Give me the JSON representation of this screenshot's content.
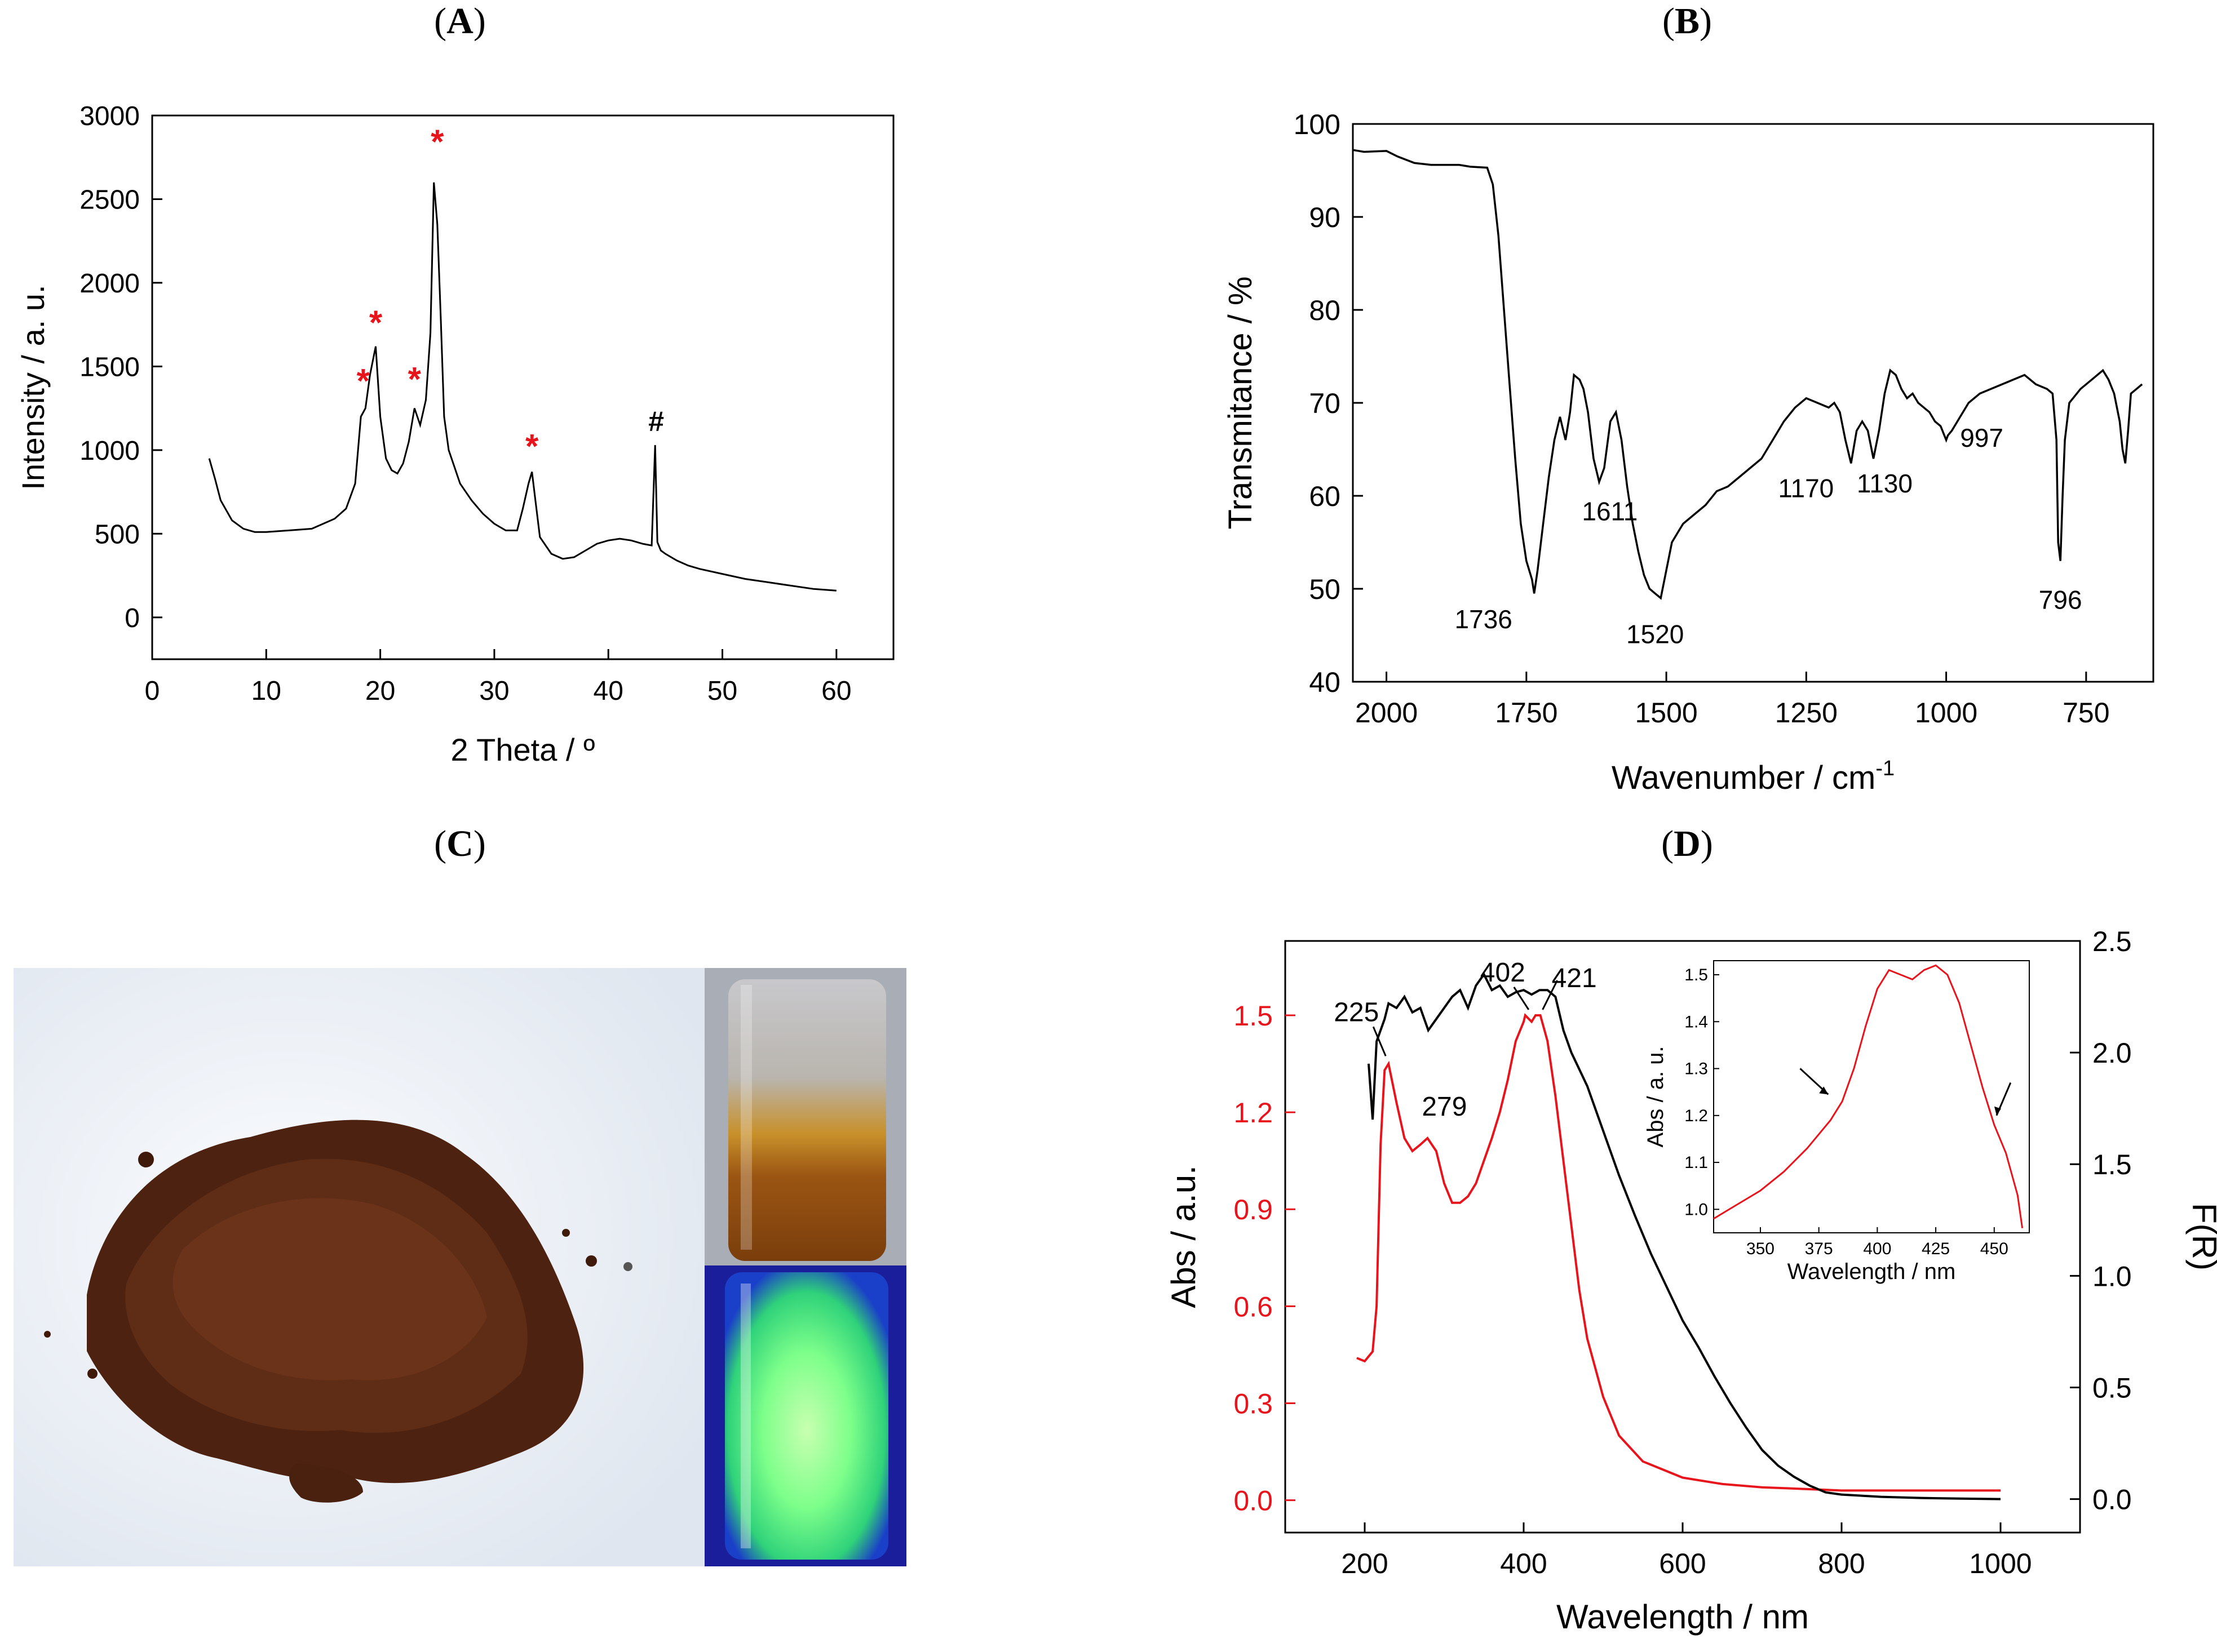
{
  "panels": {
    "A": {
      "label": "A"
    },
    "B": {
      "label": "B"
    },
    "C": {
      "label": "C"
    },
    "D": {
      "label": "D"
    }
  },
  "chart_data": [
    {
      "panel": "A",
      "type": "line",
      "xlabel": "2 Theta / º",
      "ylabel": "Intensity / a. u.",
      "xlim": [
        0,
        65
      ],
      "ylim": [
        -250,
        3000
      ],
      "xticks": [
        0,
        10,
        20,
        30,
        40,
        50,
        60
      ],
      "yticks": [
        0,
        500,
        1000,
        1500,
        2000,
        2500,
        3000
      ],
      "series": [
        {
          "x": [
            5,
            5.5,
            6,
            7,
            8,
            9,
            10,
            12,
            14,
            15,
            16,
            17,
            17.8,
            18.3,
            18.7,
            19.1,
            19.6,
            20.0,
            20.5,
            21,
            21.5,
            22,
            22.5,
            23,
            23.5,
            24,
            24.4,
            24.7,
            25.0,
            25.3,
            25.6,
            26,
            26.5,
            27,
            28,
            29,
            30,
            31,
            32,
            32.5,
            33,
            33.3,
            33.6,
            34,
            35,
            36,
            37,
            38,
            39,
            40,
            41,
            42,
            43,
            43.8,
            44.1,
            44.3,
            44.6,
            45,
            46,
            47,
            48,
            50,
            52,
            54,
            56,
            58,
            60
          ],
          "y": [
            950,
            830,
            700,
            580,
            530,
            510,
            510,
            520,
            530,
            560,
            590,
            650,
            800,
            1200,
            1250,
            1450,
            1620,
            1200,
            950,
            880,
            860,
            920,
            1050,
            1250,
            1150,
            1300,
            1700,
            2600,
            2350,
            1800,
            1200,
            1000,
            900,
            800,
            700,
            620,
            560,
            520,
            520,
            650,
            800,
            870,
            700,
            480,
            380,
            350,
            360,
            400,
            440,
            460,
            470,
            460,
            440,
            430,
            1030,
            450,
            400,
            380,
            340,
            310,
            290,
            260,
            230,
            210,
            190,
            170,
            160
          ]
        }
      ],
      "annotations": [
        {
          "text": "*",
          "x": 18.5,
          "y": 1270,
          "color": "#e8141c"
        },
        {
          "text": "*",
          "x": 19.6,
          "y": 1620,
          "color": "#e8141c"
        },
        {
          "text": "*",
          "x": 23.0,
          "y": 1280,
          "color": "#e8141c"
        },
        {
          "text": "*",
          "x": 25.0,
          "y": 2700,
          "color": "#e8141c"
        },
        {
          "text": "*",
          "x": 33.3,
          "y": 880,
          "color": "#e8141c"
        },
        {
          "text": "#",
          "x": 44.2,
          "y": 1040,
          "color": "#000000"
        }
      ]
    },
    {
      "panel": "B",
      "type": "line",
      "xlabel": "Wavenumber / cm",
      "xlabel_sup": "-1",
      "ylabel": "Transmitance / %",
      "xlim": [
        2060,
        630
      ],
      "ylim": [
        40,
        100
      ],
      "xticks": [
        2000,
        1750,
        1500,
        1250,
        1000,
        750
      ],
      "yticks": [
        40,
        50,
        60,
        70,
        80,
        90,
        100
      ],
      "series": [
        {
          "x": [
            2060,
            2040,
            2000,
            1980,
            1950,
            1920,
            1900,
            1870,
            1850,
            1820,
            1810,
            1800,
            1790,
            1780,
            1770,
            1760,
            1750,
            1740,
            1736,
            1730,
            1720,
            1710,
            1700,
            1690,
            1680,
            1672,
            1665,
            1655,
            1648,
            1640,
            1630,
            1620,
            1611,
            1600,
            1590,
            1580,
            1570,
            1560,
            1550,
            1540,
            1530,
            1520,
            1510,
            1500,
            1490,
            1480,
            1470,
            1450,
            1430,
            1410,
            1390,
            1370,
            1350,
            1330,
            1310,
            1290,
            1270,
            1250,
            1230,
            1210,
            1200,
            1190,
            1180,
            1170,
            1160,
            1150,
            1140,
            1130,
            1120,
            1110,
            1100,
            1090,
            1080,
            1070,
            1060,
            1050,
            1040,
            1030,
            1020,
            1010,
            1000,
            997,
            990,
            980,
            960,
            940,
            920,
            900,
            880,
            860,
            840,
            820,
            810,
            803,
            800,
            796,
            792,
            788,
            780,
            760,
            740,
            720,
            710,
            700,
            690,
            685,
            680,
            675,
            670,
            660,
            650
          ],
          "y": [
            97.2,
            97.0,
            97.1,
            96.5,
            95.8,
            95.6,
            95.6,
            95.6,
            95.4,
            95.3,
            93.5,
            88,
            80,
            72,
            64,
            57,
            53,
            51,
            49.5,
            52,
            57,
            62,
            66,
            68.5,
            66,
            69,
            73,
            72.5,
            71.5,
            69,
            64,
            61.5,
            63,
            68,
            69,
            66,
            61,
            57,
            54,
            51.5,
            50,
            49.5,
            49,
            52,
            55,
            56,
            57,
            58,
            59,
            60.5,
            61,
            62,
            63,
            64,
            66,
            68,
            69.5,
            70.5,
            70,
            69.5,
            70,
            69,
            66,
            63.5,
            67,
            68,
            67,
            64,
            67,
            71,
            73.5,
            73,
            71.5,
            70.5,
            71,
            70,
            69.5,
            69,
            68,
            67.5,
            66,
            66.5,
            67,
            68,
            70,
            71,
            71.5,
            72,
            72.5,
            73,
            72,
            71.5,
            71,
            66,
            55,
            53,
            60,
            66,
            70,
            71.5,
            72.5,
            73.5,
            72.5,
            71,
            68,
            65,
            63.5,
            67,
            71,
            71.5,
            72
          ]
        }
      ],
      "annotations": [
        {
          "text": "1736",
          "x": 1736,
          "y": 50
        },
        {
          "text": "1611",
          "x": 1611,
          "y": 61
        },
        {
          "text": "1520",
          "x": 1520,
          "y": 49
        },
        {
          "text": "1170",
          "x": 1170,
          "y": 63.5
        },
        {
          "text": "1130",
          "x": 1130,
          "y": 64
        },
        {
          "text": "997",
          "x": 997,
          "y": 66.5
        },
        {
          "text": "796",
          "x": 796,
          "y": 53
        }
      ]
    },
    {
      "panel": "D",
      "type": "line",
      "xlabel": "Wavelength / nm",
      "ylabel": "Abs / a.u.",
      "ylabel_right": "F(R)",
      "xlim": [
        100,
        1100
      ],
      "ylim": [
        -0.1,
        1.73
      ],
      "ylim_right": [
        -0.15,
        2.5
      ],
      "xticks": [
        200,
        400,
        600,
        800,
        1000
      ],
      "yticks": [
        0.0,
        0.3,
        0.6,
        0.9,
        1.2,
        1.5
      ],
      "yticks_right": [
        0.0,
        0.5,
        1.0,
        1.5,
        2.0,
        2.5
      ],
      "series": [
        {
          "axis": "left",
          "color": "#e8141c",
          "x": [
            190,
            200,
            210,
            215,
            220,
            225,
            230,
            240,
            250,
            260,
            270,
            279,
            290,
            300,
            310,
            320,
            330,
            340,
            350,
            360,
            370,
            380,
            390,
            400,
            402,
            410,
            415,
            421,
            430,
            440,
            450,
            460,
            470,
            480,
            500,
            520,
            550,
            600,
            650,
            700,
            750,
            800,
            850,
            900,
            950,
            1000
          ],
          "y": [
            0.44,
            0.43,
            0.46,
            0.6,
            1.1,
            1.33,
            1.35,
            1.23,
            1.12,
            1.08,
            1.1,
            1.12,
            1.08,
            0.98,
            0.92,
            0.92,
            0.94,
            0.98,
            1.05,
            1.12,
            1.2,
            1.3,
            1.42,
            1.48,
            1.5,
            1.48,
            1.5,
            1.5,
            1.42,
            1.25,
            1.05,
            0.85,
            0.65,
            0.5,
            0.32,
            0.2,
            0.12,
            0.07,
            0.05,
            0.04,
            0.035,
            0.03,
            0.03,
            0.03,
            0.03,
            0.03
          ]
        },
        {
          "axis": "right",
          "color": "#000000",
          "x": [
            205,
            210,
            215,
            220,
            225,
            230,
            240,
            250,
            260,
            270,
            280,
            290,
            300,
            310,
            320,
            330,
            340,
            350,
            360,
            370,
            380,
            390,
            400,
            410,
            420,
            430,
            440,
            450,
            460,
            480,
            500,
            520,
            540,
            560,
            580,
            600,
            620,
            640,
            660,
            680,
            700,
            720,
            740,
            760,
            780,
            800,
            850,
            900,
            950,
            1000
          ],
          "y": [
            1.95,
            1.7,
            2.05,
            2.1,
            2.15,
            2.22,
            2.2,
            2.25,
            2.18,
            2.2,
            2.1,
            2.15,
            2.2,
            2.25,
            2.28,
            2.2,
            2.3,
            2.35,
            2.28,
            2.3,
            2.25,
            2.27,
            2.28,
            2.26,
            2.28,
            2.28,
            2.25,
            2.1,
            2.0,
            1.85,
            1.65,
            1.45,
            1.27,
            1.1,
            0.95,
            0.8,
            0.68,
            0.55,
            0.43,
            0.32,
            0.22,
            0.15,
            0.1,
            0.06,
            0.03,
            0.02,
            0.01,
            0.005,
            0.002,
            0.0
          ]
        }
      ],
      "annotations": [
        {
          "text": "225",
          "x": 225,
          "y": 1.36
        },
        {
          "text": "279",
          "x": 279,
          "y": 1.12
        },
        {
          "text": "402",
          "x": 402,
          "y": 1.5
        },
        {
          "text": "421",
          "x": 421,
          "y": 1.5
        }
      ],
      "inset": {
        "type": "line",
        "xlabel": "Wavelength / nm",
        "ylabel": "Abs / a. u.",
        "xlim": [
          330,
          465
        ],
        "ylim": [
          0.95,
          1.53
        ],
        "xticks": [
          350,
          375,
          400,
          425,
          450
        ],
        "yticks": [
          1.0,
          1.1,
          1.2,
          1.3,
          1.4,
          1.5
        ],
        "series": [
          {
            "color": "#e8141c",
            "x": [
              330,
              340,
              350,
              360,
              370,
              380,
              385,
              390,
              395,
              400,
              405,
              410,
              415,
              420,
              425,
              430,
              435,
              440,
              445,
              450,
              455,
              460,
              462
            ],
            "y": [
              0.98,
              1.01,
              1.04,
              1.08,
              1.13,
              1.19,
              1.23,
              1.3,
              1.39,
              1.47,
              1.51,
              1.5,
              1.49,
              1.51,
              1.52,
              1.5,
              1.44,
              1.35,
              1.26,
              1.18,
              1.12,
              1.03,
              0.96
            ]
          }
        ]
      }
    }
  ]
}
